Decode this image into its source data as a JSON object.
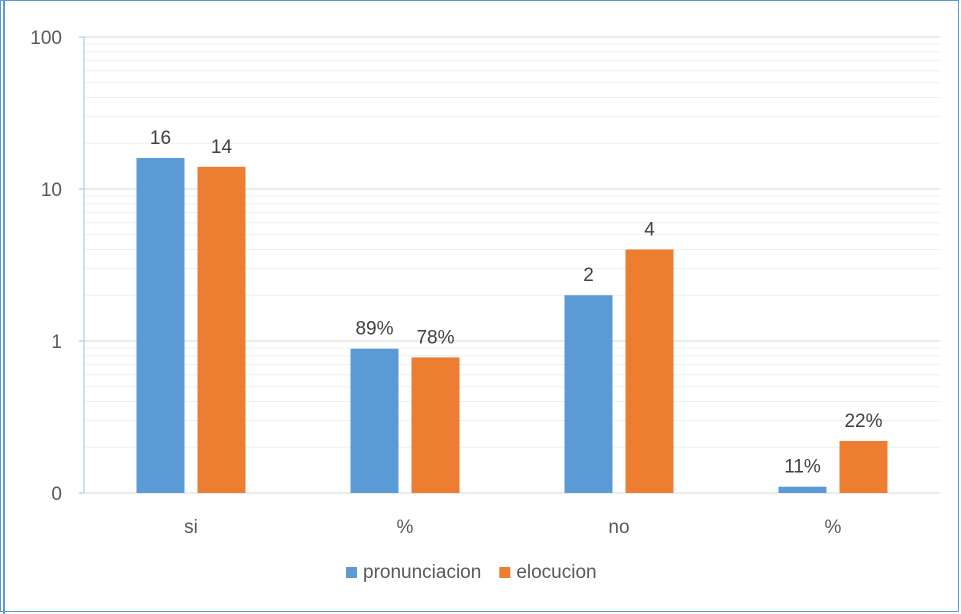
{
  "chart_data": {
    "type": "bar",
    "categories": [
      "si",
      "%",
      "no",
      "%"
    ],
    "series": [
      {
        "name": "pronunciacion",
        "color": "#5b9bd5",
        "values": [
          16,
          0.89,
          2,
          0.11
        ],
        "labels": [
          "16",
          "89%",
          "2",
          "11%"
        ]
      },
      {
        "name": "elocucion",
        "color": "#ed7d31",
        "values": [
          14,
          0.78,
          4,
          0.22
        ],
        "labels": [
          "14",
          "78%",
          "4",
          "22%"
        ]
      }
    ],
    "yscale": "log",
    "ylim": [
      0.1,
      100
    ],
    "yticks": [
      0.1,
      1,
      10,
      100
    ],
    "ytick_labels": [
      "0",
      "1",
      "10",
      "100"
    ],
    "grid": true,
    "legend": "bottom"
  }
}
